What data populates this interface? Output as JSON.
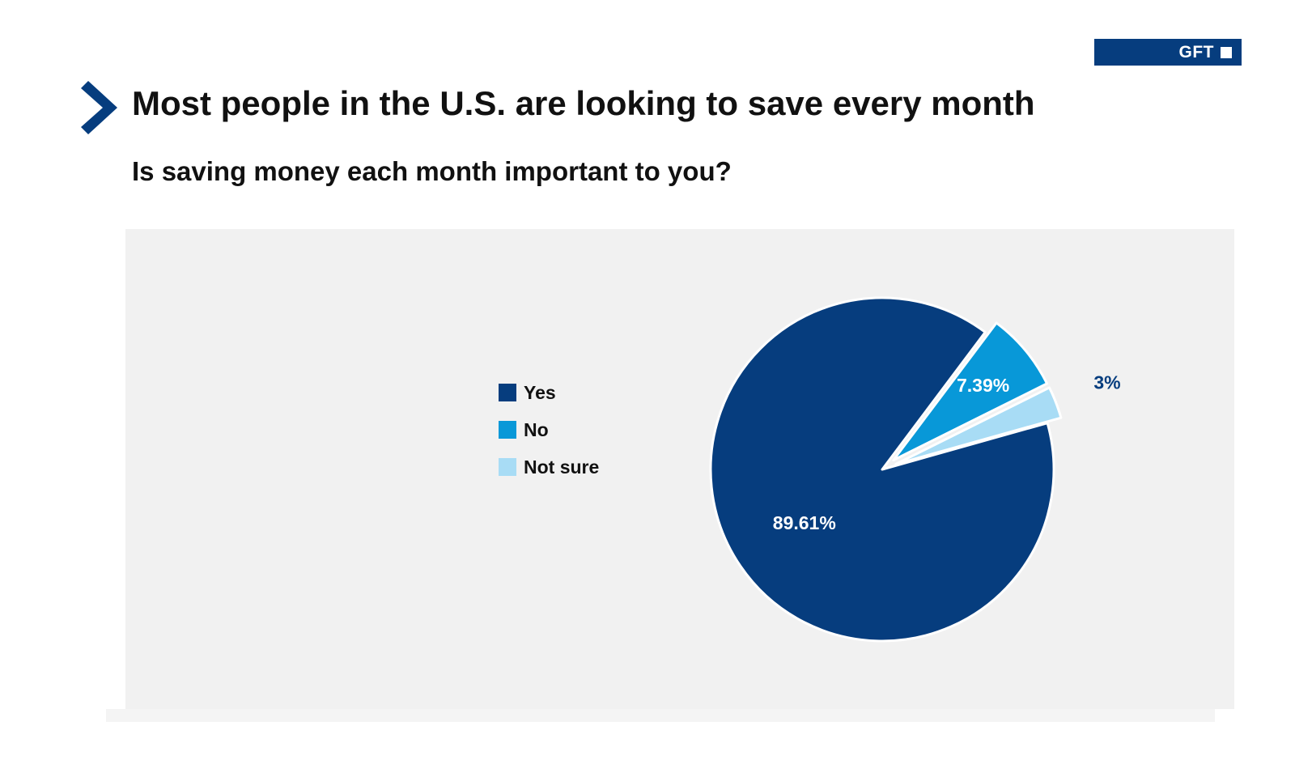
{
  "brand": {
    "logo_text": "GFT",
    "logo_color": "#063d7e"
  },
  "header": {
    "title": "Most people in the U.S. are looking to save every month",
    "subtitle": "Is saving money each month important to you?",
    "icon": "chevron-right-icon",
    "accent_color": "#063d7e"
  },
  "chart_data": {
    "type": "pie",
    "title": "Most people in the U.S. are looking to save every month",
    "subtitle": "Is saving money each month important to you?",
    "legend_position": "left",
    "slices": [
      {
        "name": "Yes",
        "value": 89.61,
        "label": "89.61%",
        "color": "#063d7e",
        "exploded": false,
        "label_placement": "inside"
      },
      {
        "name": "No",
        "value": 7.39,
        "label": "7.39%",
        "color": "#0898d8",
        "exploded": true,
        "label_placement": "inside"
      },
      {
        "name": "Not sure",
        "value": 3,
        "label": "3%",
        "color": "#a8dcf5",
        "exploded": true,
        "label_placement": "outside"
      }
    ]
  }
}
